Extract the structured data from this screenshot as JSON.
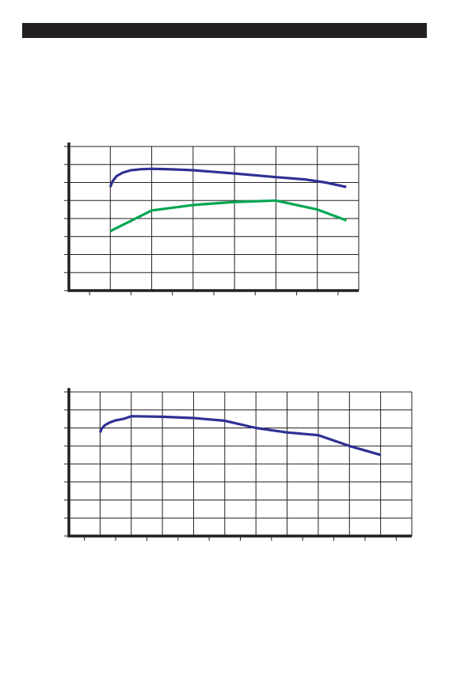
{
  "header": {
    "title": ""
  },
  "colors": {
    "header": "#231f20",
    "axis": "#231f20",
    "grid": "#231f20",
    "blue": "#2e3192",
    "green": "#00a651"
  },
  "chart_data": [
    {
      "type": "line",
      "title": "",
      "xlabel": "",
      "ylabel": "",
      "xlim": [
        0,
        7
      ],
      "ylim": [
        0,
        8
      ],
      "grid": true,
      "x_gridlines": [
        1,
        2,
        3,
        4,
        5,
        6,
        7
      ],
      "x_ticks": [
        0.5,
        1.5,
        2.5,
        3.5,
        4.5,
        5.5,
        6.5
      ],
      "y_gridlines": [
        1,
        2,
        3,
        4,
        5,
        6,
        7,
        8
      ],
      "y_ticks": [
        0,
        1,
        2,
        3,
        4,
        5,
        6,
        7,
        8
      ],
      "series": [
        {
          "color_key": "blue",
          "x": [
            1.0,
            1.05,
            1.15,
            1.3,
            1.5,
            1.75,
            2.0,
            2.5,
            3.0,
            4.0,
            5.0,
            5.7,
            6.2,
            6.7
          ],
          "y": [
            5.75,
            6.05,
            6.35,
            6.55,
            6.68,
            6.74,
            6.76,
            6.73,
            6.68,
            6.5,
            6.3,
            6.17,
            6.0,
            5.75
          ]
        },
        {
          "color_key": "green",
          "x": [
            1.0,
            2.0,
            3.0,
            4.0,
            5.0,
            6.0,
            6.7
          ],
          "y": [
            3.3,
            4.45,
            4.75,
            4.92,
            5.0,
            4.5,
            3.9
          ]
        }
      ]
    },
    {
      "type": "line",
      "title": "",
      "xlabel": "",
      "ylabel": "",
      "xlim": [
        0,
        11
      ],
      "ylim": [
        0,
        8
      ],
      "grid": true,
      "x_gridlines": [
        1,
        2,
        3,
        4,
        5,
        6,
        7,
        8,
        9,
        10,
        11
      ],
      "x_ticks": [
        0.5,
        1.5,
        2.5,
        3.5,
        4.5,
        5.5,
        6.5,
        7.5,
        8.5,
        9.5,
        10.5
      ],
      "y_gridlines": [
        1,
        2,
        3,
        4,
        5,
        6,
        7,
        8
      ],
      "y_ticks": [
        0,
        1,
        2,
        3,
        4,
        5,
        6,
        7,
        8
      ],
      "series": [
        {
          "color_key": "blue",
          "x": [
            1.0,
            1.05,
            1.15,
            1.3,
            1.5,
            1.75,
            2.0,
            3.0,
            4.0,
            5.0,
            6.0,
            7.0,
            8.0,
            9.0,
            10.0
          ],
          "y": [
            5.75,
            5.95,
            6.15,
            6.3,
            6.42,
            6.5,
            6.65,
            6.62,
            6.55,
            6.4,
            6.0,
            5.75,
            5.6,
            5.0,
            4.5
          ]
        }
      ]
    }
  ]
}
